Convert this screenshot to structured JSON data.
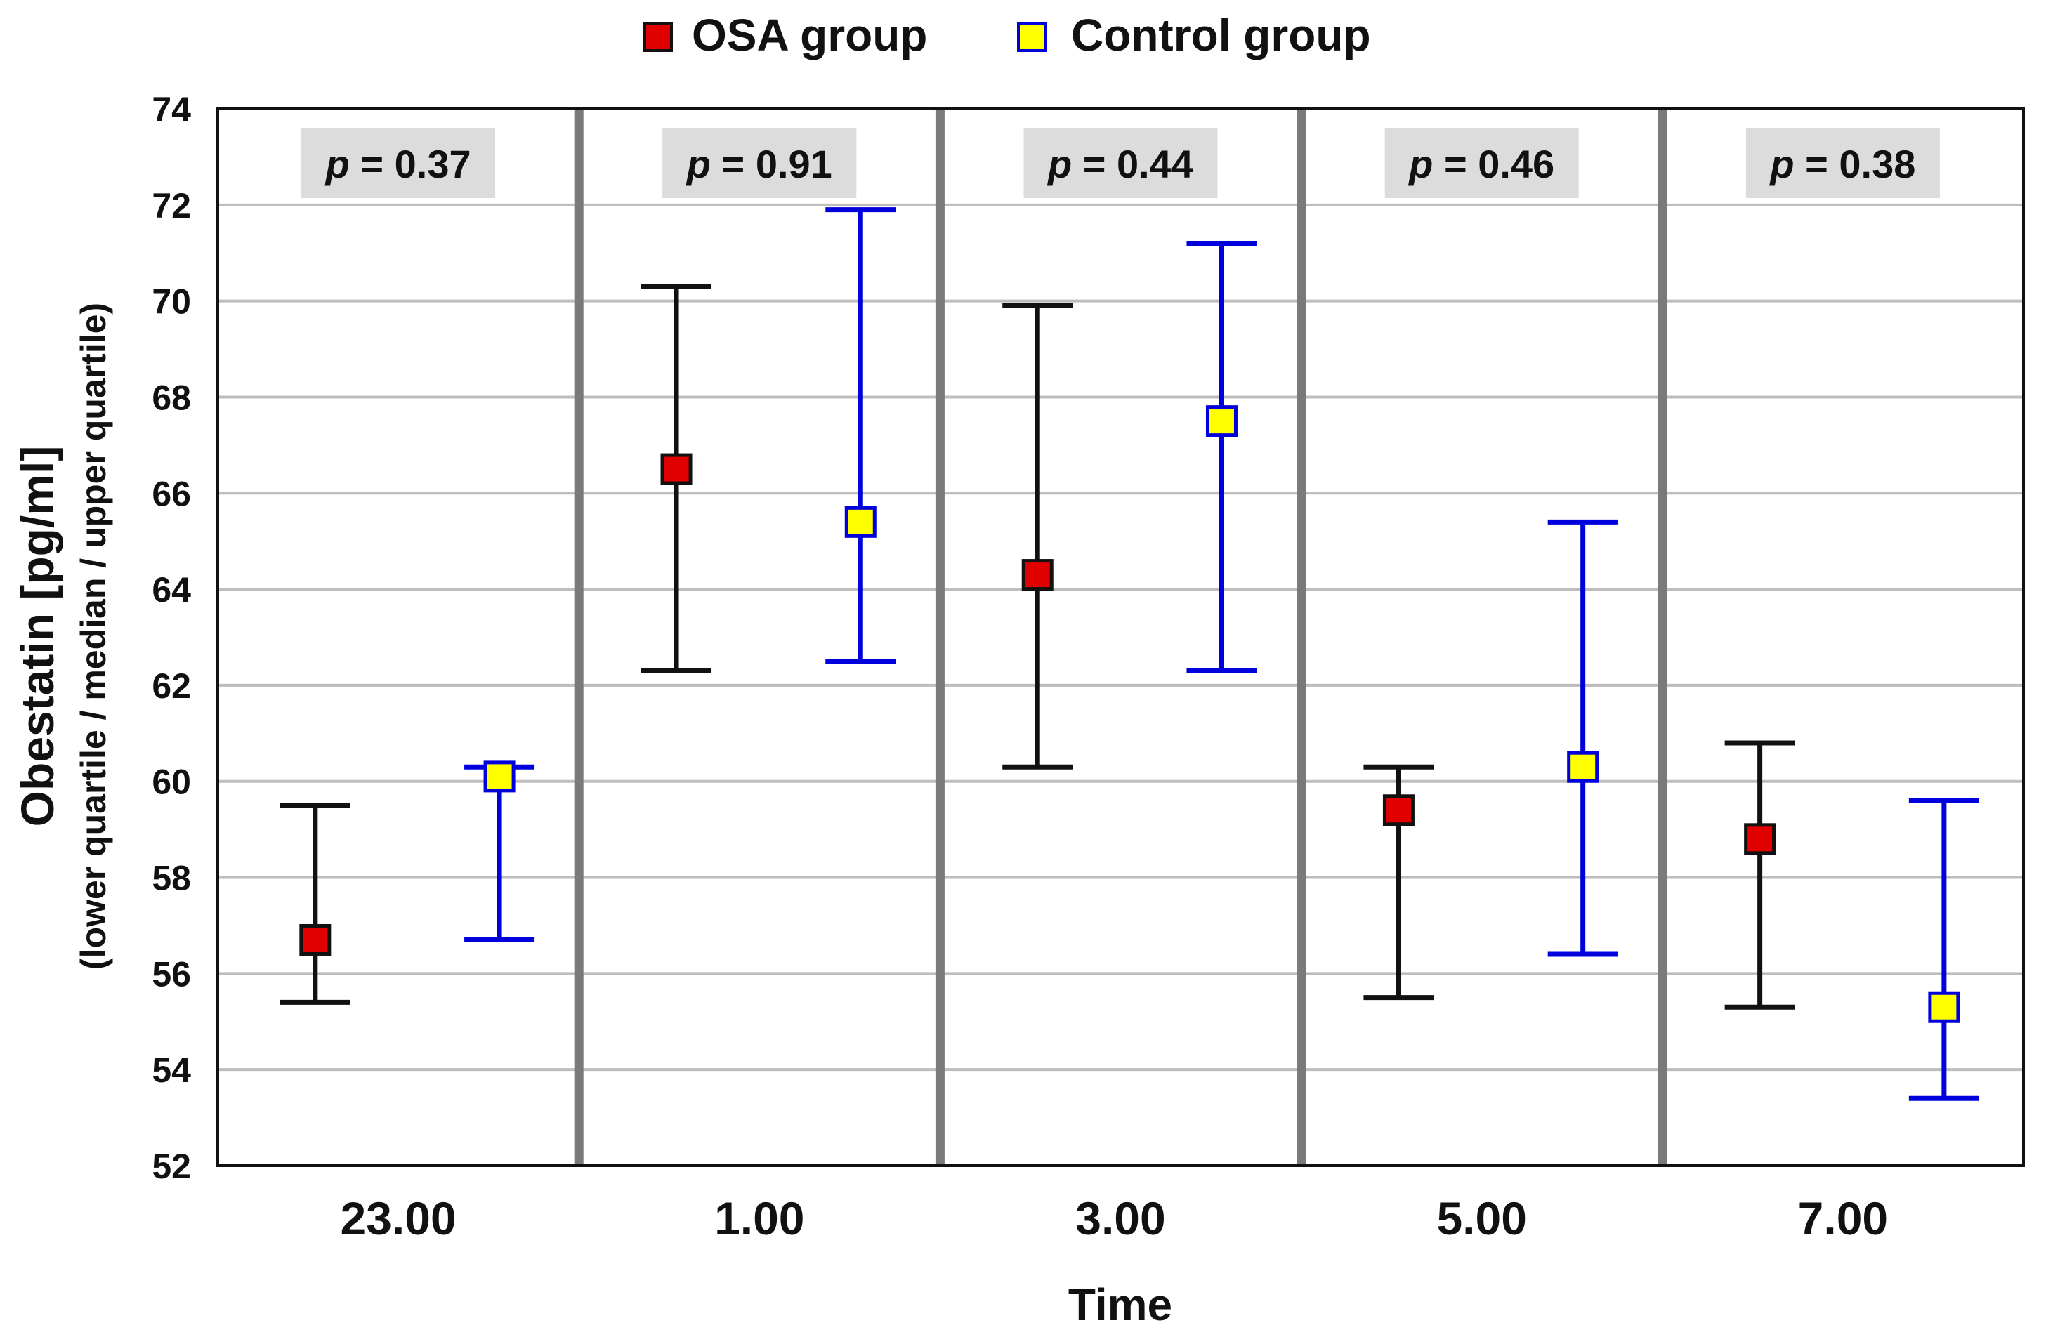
{
  "chart_data": {
    "type": "scatter",
    "title": "",
    "xlabel": "Time",
    "ylabel": "Obestatin [pg/ml]",
    "ylabel_sub": "(lower quartile / median / upper quartile)",
    "categories": [
      "23.00",
      "1.00",
      "3.00",
      "5.00",
      "7.00"
    ],
    "ylim": [
      52,
      74
    ],
    "yticks": [
      "52",
      "54",
      "56",
      "58",
      "60",
      "62",
      "64",
      "66",
      "68",
      "70",
      "72",
      "74"
    ],
    "grid": true,
    "legend_position": "top",
    "p_values": [
      "p = 0.37",
      "p = 0.91",
      "p = 0.44",
      "p = 0.46",
      "p = 0.38"
    ],
    "series": [
      {
        "name": "OSA group",
        "marker_color": "#e00000",
        "bar_color": "#111111",
        "median": [
          56.7,
          66.5,
          64.3,
          59.4,
          58.8
        ],
        "lower_quartile": [
          55.4,
          62.3,
          60.3,
          55.5,
          55.3
        ],
        "upper_quartile": [
          59.5,
          70.3,
          69.9,
          60.3,
          60.8
        ]
      },
      {
        "name": "Control group",
        "marker_color": "#ffff00",
        "bar_color": "#0000dd",
        "median": [
          60.1,
          65.4,
          67.5,
          60.3,
          55.3
        ],
        "lower_quartile": [
          56.7,
          62.5,
          62.3,
          56.4,
          53.4
        ],
        "upper_quartile": [
          60.3,
          71.9,
          71.2,
          65.4,
          59.6
        ]
      }
    ]
  }
}
